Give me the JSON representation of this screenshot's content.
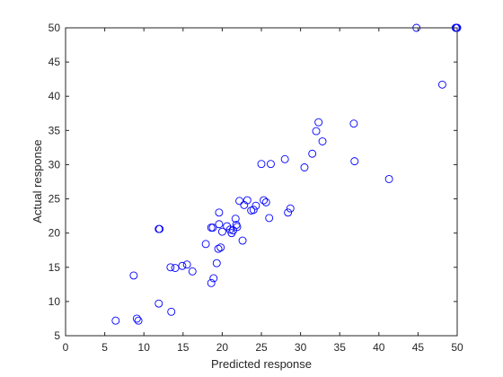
{
  "chart_data": {
    "type": "scatter",
    "title": "",
    "xlabel": "Predicted response",
    "ylabel": "Actual response",
    "xlim": [
      0,
      50
    ],
    "ylim": [
      5,
      50
    ],
    "xticks": [
      0,
      5,
      10,
      15,
      20,
      25,
      30,
      35,
      40,
      45,
      50
    ],
    "yticks": [
      5,
      10,
      15,
      20,
      25,
      30,
      35,
      40,
      45,
      50
    ],
    "grid": false,
    "legend": "none",
    "marker": "open-circle",
    "marker_color": "#0000ff",
    "x": [
      6.4,
      9.1,
      9.3,
      8.7,
      11.9,
      13.5,
      12.0,
      13.4,
      14.0,
      14.9,
      15.5,
      16.2,
      17.9,
      18.6,
      18.9,
      18.8,
      19.3,
      19.5,
      19.8,
      19.6,
      19.6,
      20.0,
      20.6,
      21.0,
      21.2,
      21.4,
      21.7,
      21.8,
      21.9,
      22.2,
      22.6,
      22.8,
      23.2,
      23.7,
      24.0,
      24.3,
      25.0,
      25.3,
      25.6,
      26.0,
      26.2,
      28.0,
      28.4,
      28.7,
      30.5,
      31.5,
      32.0,
      32.3,
      32.8,
      36.8,
      36.9,
      41.3,
      44.8,
      48.1,
      49.9,
      50.0,
      49.8,
      11.9,
      18.6
    ],
    "y": [
      7.2,
      7.5,
      7.2,
      13.8,
      9.7,
      8.5,
      20.6,
      15.0,
      14.9,
      15.2,
      15.4,
      14.4,
      18.4,
      12.7,
      13.4,
      20.8,
      15.6,
      17.7,
      17.9,
      21.3,
      23.0,
      20.2,
      21.0,
      20.5,
      20.0,
      20.4,
      22.1,
      21.2,
      20.9,
      24.7,
      18.9,
      24.1,
      24.8,
      23.3,
      23.4,
      24.0,
      30.1,
      24.8,
      24.5,
      22.2,
      30.1,
      30.8,
      23.0,
      23.6,
      29.6,
      31.6,
      34.9,
      36.2,
      33.4,
      36.0,
      30.5,
      27.9,
      50.0,
      41.7,
      50.0,
      50.0,
      50.0,
      20.6,
      20.8
    ]
  }
}
